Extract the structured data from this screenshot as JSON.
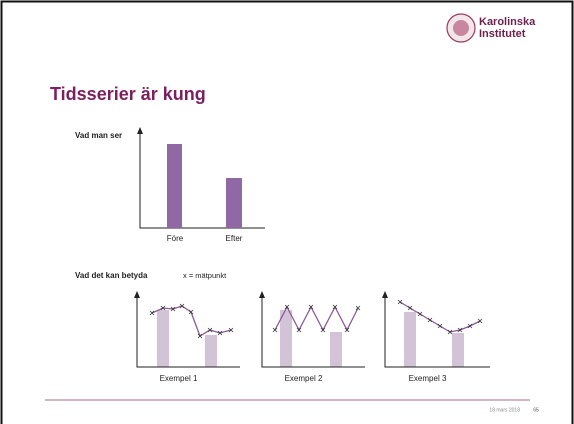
{
  "header": {
    "logo_line1": "Karolinska",
    "logo_line2": "Institutet"
  },
  "title": "Tidsserier är kung",
  "figure1": {
    "label": "Vad man ser",
    "categories": [
      "Före",
      "Efter"
    ]
  },
  "figure2": {
    "label": "Vad det kan betyda",
    "legend": "x = mätpunkt",
    "examples": [
      "Exempel 1",
      "Exempel 2",
      "Exempel 3"
    ]
  },
  "footer": {
    "date": "18 mars 2018",
    "page": "65"
  }
}
